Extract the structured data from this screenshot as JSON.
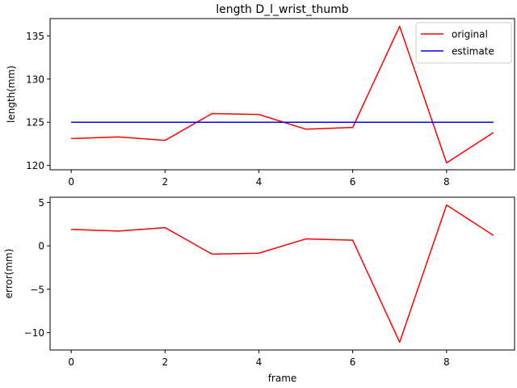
{
  "chart_data": [
    {
      "type": "line",
      "title": "length D_l_wrist_thumb",
      "xlabel": "",
      "ylabel": "length(mm)",
      "x": [
        0,
        1,
        2,
        3,
        4,
        5,
        6,
        7,
        8,
        9
      ],
      "series": [
        {
          "name": "original",
          "color": "#ff0000",
          "values": [
            123.1,
            123.3,
            122.9,
            126.0,
            125.9,
            124.2,
            124.4,
            136.1,
            120.3,
            123.8
          ]
        },
        {
          "name": "estimate",
          "color": "#0000ff",
          "values": [
            125.0,
            125.0,
            125.0,
            125.0,
            125.0,
            125.0,
            125.0,
            125.0,
            125.0,
            125.0
          ]
        }
      ],
      "xlim": [
        -0.45,
        9.45
      ],
      "ylim": [
        119.5,
        137.0
      ],
      "xticks": [
        0,
        2,
        4,
        6,
        8
      ],
      "yticks": [
        120,
        125,
        130,
        135
      ],
      "legend": "upper right",
      "grid": false
    },
    {
      "type": "line",
      "title": "",
      "xlabel": "frame",
      "ylabel": "error(mm)",
      "x": [
        0,
        1,
        2,
        3,
        4,
        5,
        6,
        7,
        8,
        9
      ],
      "series": [
        {
          "color": "#ff0000",
          "values": [
            1.9,
            1.7,
            2.1,
            -0.95,
            -0.85,
            0.8,
            0.65,
            -11.1,
            4.7,
            1.2
          ]
        }
      ],
      "xlim": [
        -0.45,
        9.45
      ],
      "ylim": [
        -12.0,
        5.6
      ],
      "xticks": [
        0,
        2,
        4,
        6,
        8
      ],
      "yticks": [
        -10,
        -5,
        0,
        5
      ],
      "grid": false
    }
  ]
}
